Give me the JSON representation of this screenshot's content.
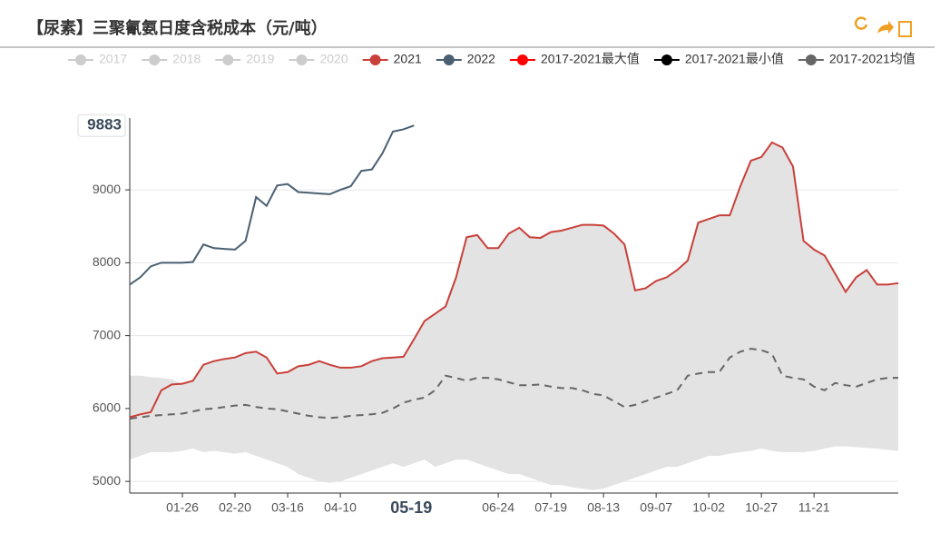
{
  "chart_data": {
    "type": "line",
    "title": "【尿素】三聚氰氨日度含税成本（元/吨）",
    "legend_hidden": [
      "2017",
      "2018",
      "2019",
      "2020"
    ],
    "categories": [
      null,
      null,
      null,
      null,
      null,
      "01-26",
      null,
      null,
      null,
      null,
      "02-20",
      null,
      null,
      null,
      null,
      "03-16",
      null,
      null,
      null,
      null,
      "04-10",
      null,
      null,
      null,
      null,
      null,
      null,
      null,
      null,
      null,
      null,
      null,
      null,
      null,
      null,
      "06-24",
      null,
      null,
      null,
      null,
      "07-19",
      null,
      null,
      null,
      null,
      "08-13",
      null,
      null,
      null,
      null,
      "09-07",
      null,
      null,
      null,
      null,
      "10-02",
      null,
      null,
      null,
      null,
      "10-27",
      null,
      null,
      null,
      null,
      "11-21",
      null,
      null,
      null,
      null,
      null,
      null,
      null,
      null
    ],
    "series": [
      {
        "name": "2021",
        "color": "#c9403a",
        "values": [
          5880,
          5920,
          5950,
          6250,
          6330,
          6340,
          6380,
          6600,
          6650,
          6680,
          6700,
          6760,
          6780,
          6700,
          6480,
          6500,
          6580,
          6600,
          6650,
          6600,
          6560,
          6560,
          6580,
          6650,
          6690,
          6700,
          6710,
          6950,
          7200,
          7300,
          7400,
          7800,
          8350,
          8380,
          8200,
          8200,
          8400,
          8480,
          8350,
          8340,
          8420,
          8440,
          8480,
          8520,
          8520,
          8510,
          8400,
          8250,
          7620,
          7650,
          7750,
          7800,
          7900,
          8030,
          8550,
          8600,
          8650,
          8650,
          9050,
          9400,
          9450,
          9650,
          9580,
          9320,
          8300,
          8180,
          8100,
          7850,
          7600,
          7800,
          7900,
          7700,
          7700,
          7720
        ]
      },
      {
        "name": "2022",
        "color": "#4a5f72",
        "values": [
          7700,
          7800,
          7950,
          8000,
          8000,
          8000,
          8010,
          8250,
          8200,
          8190,
          8180,
          8300,
          8900,
          8780,
          9060,
          9080,
          8970,
          8960,
          8950,
          8940,
          9000,
          9050,
          9260,
          9280,
          9500,
          9800,
          9830,
          9883,
          null,
          null,
          null,
          null,
          null,
          null,
          null,
          null,
          null,
          null,
          null,
          null,
          null,
          null,
          null,
          null,
          null,
          null,
          null,
          null,
          null,
          null,
          null,
          null,
          null,
          null,
          null,
          null,
          null,
          null,
          null,
          null,
          null,
          null,
          null,
          null,
          null,
          null,
          null,
          null,
          null,
          null,
          null,
          null,
          null,
          null
        ]
      },
      {
        "name": "2017-2021最大值",
        "color": "#ff0000",
        "values": [
          6450,
          6450,
          6430,
          6420,
          6400,
          6340,
          6380,
          6600,
          6650,
          6680,
          6700,
          6760,
          6780,
          6700,
          6480,
          6500,
          6580,
          6600,
          6650,
          6600,
          6560,
          6560,
          6580,
          6650,
          6690,
          6700,
          6710,
          6950,
          7200,
          7300,
          7400,
          7800,
          8350,
          8380,
          8200,
          8200,
          8400,
          8480,
          8350,
          8340,
          8420,
          8440,
          8480,
          8520,
          8520,
          8510,
          8400,
          8250,
          7620,
          7650,
          7750,
          7800,
          7900,
          8030,
          8550,
          8600,
          8650,
          8650,
          9050,
          9400,
          9450,
          9650,
          9580,
          9320,
          8300,
          8180,
          8100,
          7850,
          7600,
          7800,
          7900,
          7700,
          7700,
          7720
        ]
      },
      {
        "name": "2017-2021最小值",
        "color": "#000000",
        "values": [
          5300,
          5350,
          5400,
          5400,
          5400,
          5420,
          5450,
          5400,
          5420,
          5400,
          5380,
          5400,
          5350,
          5300,
          5250,
          5200,
          5100,
          5050,
          5000,
          4980,
          5000,
          5050,
          5100,
          5150,
          5200,
          5250,
          5200,
          5250,
          5300,
          5200,
          5250,
          5300,
          5300,
          5250,
          5200,
          5150,
          5100,
          5100,
          5050,
          5000,
          4950,
          4950,
          4920,
          4900,
          4880,
          4900,
          4950,
          5000,
          5050,
          5100,
          5150,
          5200,
          5200,
          5250,
          5300,
          5350,
          5350,
          5380,
          5400,
          5420,
          5450,
          5420,
          5400,
          5400,
          5400,
          5420,
          5450,
          5480,
          5480,
          5470,
          5460,
          5450,
          5430,
          5420
        ]
      },
      {
        "name": "2017-2021均值",
        "color": "#666666",
        "values": [
          5860,
          5880,
          5900,
          5910,
          5920,
          5930,
          5960,
          5990,
          6000,
          6020,
          6040,
          6050,
          6020,
          6000,
          5990,
          5960,
          5930,
          5900,
          5880,
          5870,
          5880,
          5900,
          5910,
          5920,
          5940,
          6000,
          6080,
          6120,
          6150,
          6250,
          6450,
          6420,
          6380,
          6420,
          6420,
          6400,
          6360,
          6320,
          6320,
          6330,
          6300,
          6280,
          6280,
          6250,
          6200,
          6180,
          6100,
          6020,
          6050,
          6100,
          6150,
          6200,
          6250,
          6450,
          6480,
          6500,
          6500,
          6700,
          6780,
          6820,
          6800,
          6750,
          6450,
          6420,
          6400,
          6300,
          6250,
          6350,
          6320,
          6300,
          6350,
          6400,
          6420,
          6420
        ]
      }
    ],
    "band_fill": "#e3e3e3",
    "ylim": [
      4840,
      9985
    ],
    "yticks": [
      5000,
      6000,
      7000,
      8000,
      9000
    ],
    "grid": true,
    "crosshair": {
      "x_label": "05-19",
      "y_label": 9883
    }
  }
}
